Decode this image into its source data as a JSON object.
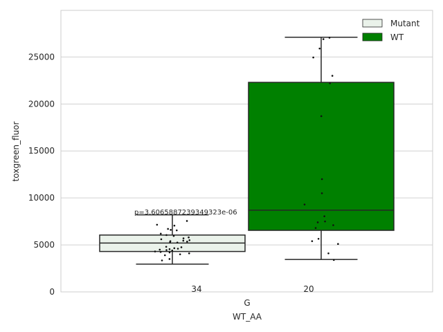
{
  "chart_data": {
    "type": "box",
    "title": "",
    "xlabel": "WT_AA",
    "ylabel": "toxgreen_fluor",
    "categories": [
      "G"
    ],
    "ylim": [
      0,
      30000
    ],
    "yticks": [
      0,
      5000,
      10000,
      15000,
      20000,
      25000
    ],
    "ytick_labels": [
      "0",
      "5000",
      "10000",
      "15000",
      "20000",
      "25000"
    ],
    "grid": "horizontal",
    "legend": {
      "placement": "top-right",
      "entries": [
        {
          "name": "Mutant",
          "color": "#eaf2ea"
        },
        {
          "name": "WT",
          "color": "#008000"
        }
      ]
    },
    "annotation": "p=3.6065887239349323e-06",
    "series": [
      {
        "name": "Mutant",
        "color": "#eaf2ea",
        "count_label": "34",
        "whisker_low": 2950,
        "q1": 4300,
        "median": 5200,
        "q3": 6050,
        "whisker_high": 8200,
        "points": [
          7550,
          7150,
          7050,
          6700,
          6600,
          6550,
          6200,
          6050,
          5950,
          5800,
          5700,
          5600,
          5500,
          5450,
          5400,
          5350,
          5300,
          5250,
          4800,
          4750,
          4650,
          4600,
          4550,
          4500,
          4450,
          4400,
          4300,
          4250,
          4200,
          4100,
          4000,
          3900,
          3500,
          3350
        ]
      },
      {
        "name": "WT",
        "color": "#008000",
        "count_label": "20",
        "whisker_low": 3450,
        "q1": 6550,
        "median": 8700,
        "q3": 22300,
        "whisker_high": 27100,
        "points": [
          27050,
          26900,
          25900,
          24950,
          23000,
          22200,
          18700,
          12000,
          10500,
          9300,
          8050,
          7500,
          7400,
          7100,
          6800,
          5650,
          5400,
          5100,
          4100,
          3400
        ]
      }
    ]
  }
}
